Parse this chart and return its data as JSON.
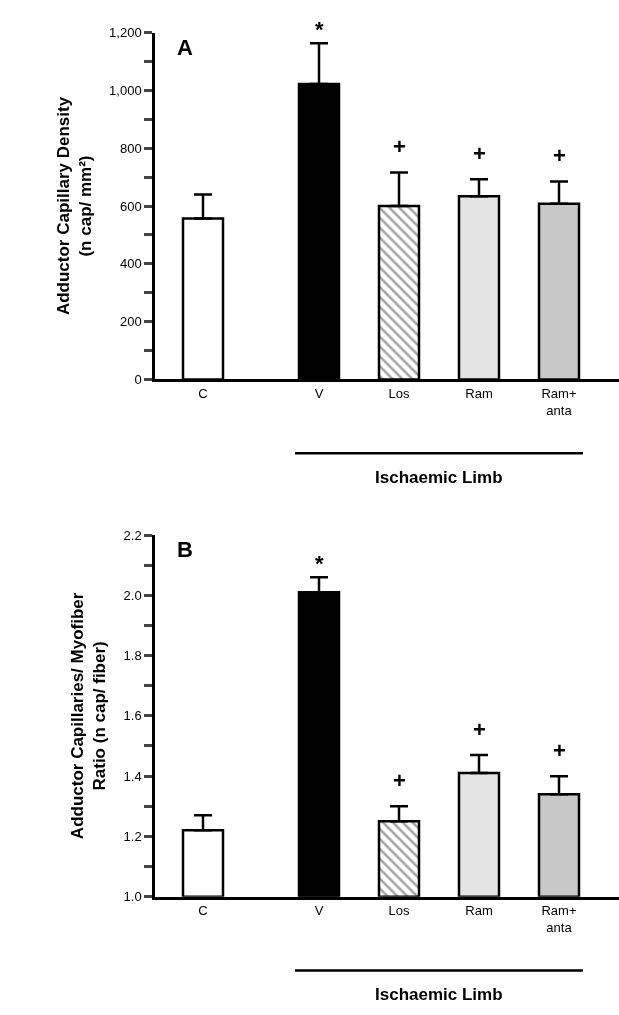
{
  "chart_data": [
    {
      "type": "bar",
      "ylabel": "Adductor Capillary Density\n(n cap/ mm²)",
      "categories": [
        "C",
        "V",
        "Los",
        "Ram",
        "Ram+\nanta"
      ],
      "values": [
        557,
        1022,
        600,
        634,
        608
      ],
      "errors": [
        [
          557,
          640
        ],
        [
          1022,
          1163
        ],
        [
          600,
          716
        ],
        [
          634,
          693
        ],
        [
          608,
          685
        ]
      ],
      "colors": [
        "#ffffff",
        "#000000",
        "#000000",
        "#e4e4e4",
        "#c8c8c8"
      ],
      "ylim": [
        0,
        1200
      ],
      "yticks": [
        0,
        {
          "value": 100,
          "label": null
        },
        200,
        {
          "value": 300,
          "label": null
        },
        400,
        {
          "value": 500,
          "label": null
        },
        600,
        {
          "value": 700,
          "label": null
        },
        800,
        {
          "value": 900,
          "label": null
        },
        {
          "value": 1000,
          "label": "1,000"
        },
        {
          "value": 1100,
          "label": null
        },
        {
          "value": 1200,
          "label": "1,200"
        }
      ],
      "annotations": [
        "A",
        "*",
        "+",
        "+",
        "+",
        "Ischaemic Limb"
      ]
    },
    {
      "type": "bar",
      "ylabel": "Adductor Capillaries/ Myofiber\nRatio (n cap/ fiber)",
      "categories": [
        "C",
        "V",
        "Los",
        "Ram",
        "Ram+\nanta"
      ],
      "values": [
        1.22,
        2.01,
        1.25,
        1.41,
        1.34
      ],
      "errors": [
        [
          1.22,
          1.27
        ],
        [
          2.01,
          2.06
        ],
        [
          1.25,
          1.3
        ],
        [
          1.41,
          1.47
        ],
        [
          1.34,
          1.4
        ]
      ],
      "colors": [
        "#ffffff",
        "#000000",
        "#000000",
        "#e4e4e4",
        "#c8c8c8"
      ],
      "ylim": [
        1.0,
        2.2
      ],
      "yticks": [
        {
          "value": 1.0,
          "label": "1.0"
        },
        {
          "value": 1.1,
          "label": null
        },
        1.2,
        {
          "value": 1.3,
          "label": null
        },
        1.4,
        {
          "value": 1.5,
          "label": null
        },
        1.6,
        {
          "value": 1.7,
          "label": null
        },
        1.8,
        {
          "value": 1.9,
          "label": null
        },
        {
          "value": 2.0,
          "label": "2.0"
        },
        {
          "value": 2.1,
          "label": null
        },
        2.2
      ],
      "annotations": [
        "B",
        "*",
        "+",
        "+",
        "+",
        "Ischaemic Limb"
      ]
    }
  ]
}
